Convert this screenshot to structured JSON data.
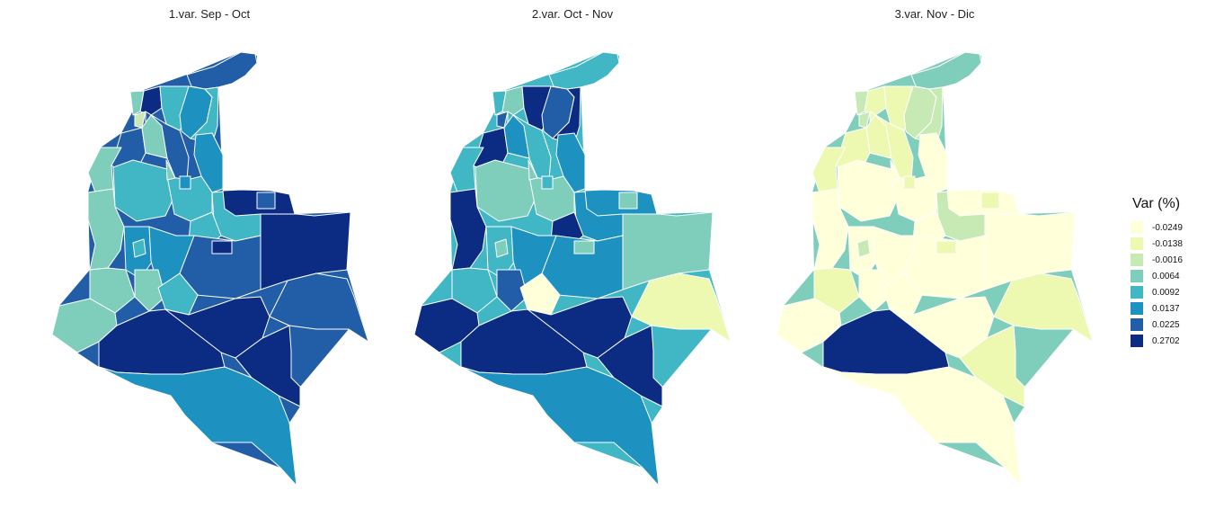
{
  "panels": [
    {
      "title": "1.var. Sep - Oct"
    },
    {
      "title": "2.var. Oct - Nov"
    },
    {
      "title": "3.var. Nov - Dic"
    }
  ],
  "legend": {
    "title": "Var (%)",
    "items": [
      {
        "label": "-0.0249",
        "color": "#ffffd9"
      },
      {
        "label": "-0.0138",
        "color": "#edf8b1"
      },
      {
        "label": "-0.0016",
        "color": "#c7e9b4"
      },
      {
        "label": "0.0064",
        "color": "#7fcdbb"
      },
      {
        "label": "0.0092",
        "color": "#41b6c4"
      },
      {
        "label": "0.0137",
        "color": "#1d91c0"
      },
      {
        "label": "0.0225",
        "color": "#225ea8"
      },
      {
        "label": "0.2702",
        "color": "#0c2c84"
      }
    ]
  },
  "map_data": {
    "region_classes": [
      [
        6,
        7,
        4,
        5,
        4,
        6,
        6,
        5,
        3,
        3,
        4,
        4,
        4,
        4,
        3,
        7,
        7,
        6,
        5,
        5,
        3,
        3,
        3,
        4,
        7,
        7,
        7,
        6,
        5,
        3,
        2,
        3,
        4,
        5,
        6,
        7
      ],
      [
        4,
        3,
        7,
        6,
        7,
        7,
        4,
        5,
        4,
        5,
        3,
        3,
        5,
        7,
        7,
        5,
        3,
        5,
        4,
        5,
        4,
        6,
        7,
        0,
        7,
        7,
        7,
        1,
        5,
        4,
        6,
        3,
        3,
        4,
        3,
        3
      ],
      [
        3,
        1,
        1,
        2,
        2,
        1,
        1,
        0,
        1,
        1,
        0,
        0,
        2,
        0,
        0,
        0,
        0,
        0,
        0,
        0,
        1,
        0,
        0,
        0,
        7,
        0,
        1,
        1,
        0,
        2,
        2,
        0,
        2,
        1,
        1,
        1
      ]
    ]
  }
}
